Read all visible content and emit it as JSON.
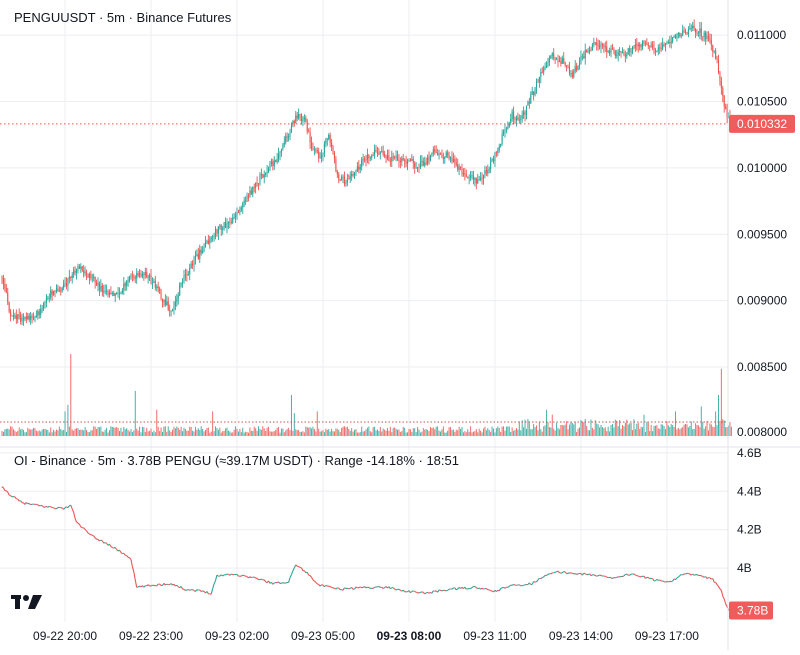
{
  "header": {
    "title": "PENGUUSDT · 5m · Binance Futures"
  },
  "oi_header": {
    "title": "OI - Binance · 5m · 3.78B PENGU (≈39.17M USDT) · Range -14.18% · 18:51"
  },
  "colors": {
    "up": "#26a69a",
    "down": "#ef5350",
    "grid": "#eceef2",
    "axis_text": "#131722",
    "badge": "#f05b5b"
  },
  "logo": {
    "icon": "tradingview-logo-icon"
  },
  "chart_data": [
    {
      "type": "candlestick",
      "name": "PENGUUSDT",
      "ylim": [
        0.00795,
        0.01125
      ],
      "y_ticks": [
        0.0085,
        0.009,
        0.0095,
        0.01,
        0.0105,
        0.011
      ],
      "y_tick_labels": [
        "0.008500",
        "0.009000",
        "0.009500",
        "0.010000",
        "0.010500",
        "0.011000"
      ],
      "last_price": 0.010332,
      "last_price_label": "0.010332",
      "price_path": [
        [
          0,
          0.00918
        ],
        [
          6,
          0.0089
        ],
        [
          14,
          0.00885
        ],
        [
          24,
          0.00888
        ],
        [
          34,
          0.00905
        ],
        [
          44,
          0.00912
        ],
        [
          54,
          0.00925
        ],
        [
          64,
          0.00915
        ],
        [
          70,
          0.00908
        ],
        [
          80,
          0.00903
        ],
        [
          90,
          0.00918
        ],
        [
          100,
          0.00922
        ],
        [
          110,
          0.00905
        ],
        [
          118,
          0.00892
        ],
        [
          124,
          0.0091
        ],
        [
          132,
          0.00925
        ],
        [
          140,
          0.0094
        ],
        [
          152,
          0.00955
        ],
        [
          160,
          0.0096
        ],
        [
          170,
          0.00975
        ],
        [
          180,
          0.00992
        ],
        [
          190,
          0.01005
        ],
        [
          198,
          0.01022
        ],
        [
          206,
          0.0104
        ],
        [
          212,
          0.01035
        ],
        [
          216,
          0.01015
        ],
        [
          222,
          0.01008
        ],
        [
          228,
          0.01025
        ],
        [
          234,
          0.00995
        ],
        [
          240,
          0.0099
        ],
        [
          250,
          0.01003
        ],
        [
          260,
          0.01012
        ],
        [
          270,
          0.01008
        ],
        [
          282,
          0.01005
        ],
        [
          292,
          0.01002
        ],
        [
          302,
          0.01012
        ],
        [
          312,
          0.01008
        ],
        [
          322,
          0.00995
        ],
        [
          332,
          0.0099
        ],
        [
          340,
          0.01
        ],
        [
          350,
          0.01025
        ],
        [
          356,
          0.0104
        ],
        [
          362,
          0.01035
        ],
        [
          370,
          0.01055
        ],
        [
          376,
          0.0107
        ],
        [
          384,
          0.01085
        ],
        [
          392,
          0.0108
        ],
        [
          398,
          0.0107
        ],
        [
          406,
          0.01085
        ],
        [
          414,
          0.01093
        ],
        [
          422,
          0.0109
        ],
        [
          432,
          0.01085
        ],
        [
          440,
          0.0109
        ],
        [
          448,
          0.01093
        ],
        [
          456,
          0.01088
        ],
        [
          464,
          0.01095
        ],
        [
          472,
          0.011
        ],
        [
          480,
          0.01105
        ],
        [
          486,
          0.01103
        ],
        [
          492,
          0.01098
        ],
        [
          496,
          0.0109
        ],
        [
          500,
          0.01075
        ],
        [
          504,
          0.01045
        ],
        [
          508,
          0.01033
        ]
      ],
      "volume_spikes": [
        {
          "candle": 48,
          "level": 1.0
        },
        {
          "candle": 46,
          "level": 0.38
        },
        {
          "candle": 44,
          "level": 0.3
        },
        {
          "candle": 93,
          "level": 0.55
        },
        {
          "candle": 108,
          "level": 0.32
        },
        {
          "candle": 147,
          "level": 0.3
        },
        {
          "candle": 202,
          "level": 0.5
        },
        {
          "candle": 204,
          "level": 0.28
        },
        {
          "candle": 220,
          "level": 0.3
        },
        {
          "candle": 380,
          "level": 0.32
        },
        {
          "candle": 384,
          "level": 0.26
        },
        {
          "candle": 448,
          "level": 0.26
        },
        {
          "candle": 470,
          "level": 0.3
        },
        {
          "candle": 488,
          "level": 0.36
        },
        {
          "candle": 500,
          "level": 0.5
        },
        {
          "candle": 502,
          "level": 0.82
        },
        {
          "candle": 498,
          "level": 0.3
        }
      ]
    },
    {
      "type": "line",
      "name": "OI - Binance",
      "unit": "B",
      "ylim": [
        3.72,
        4.62
      ],
      "y_ticks": [
        4.0,
        4.2,
        4.4,
        4.6
      ],
      "y_tick_labels": [
        "4B",
        "4.2B",
        "4.4B",
        "4.6B"
      ],
      "last_value": 3.78,
      "last_value_label": "3.78B",
      "oi_path": [
        [
          0,
          4.42
        ],
        [
          6,
          4.38
        ],
        [
          14,
          4.34
        ],
        [
          30,
          4.32
        ],
        [
          44,
          4.31
        ],
        [
          48,
          4.33
        ],
        [
          52,
          4.24
        ],
        [
          62,
          4.17
        ],
        [
          75,
          4.12
        ],
        [
          84,
          4.08
        ],
        [
          90,
          4.05
        ],
        [
          94,
          3.9
        ],
        [
          104,
          3.91
        ],
        [
          118,
          3.92
        ],
        [
          128,
          3.89
        ],
        [
          140,
          3.88
        ],
        [
          146,
          3.87
        ],
        [
          150,
          3.96
        ],
        [
          160,
          3.97
        ],
        [
          176,
          3.95
        ],
        [
          190,
          3.92
        ],
        [
          200,
          3.93
        ],
        [
          205,
          4.02
        ],
        [
          212,
          3.98
        ],
        [
          222,
          3.91
        ],
        [
          236,
          3.89
        ],
        [
          252,
          3.9
        ],
        [
          270,
          3.9
        ],
        [
          282,
          3.88
        ],
        [
          296,
          3.87
        ],
        [
          312,
          3.89
        ],
        [
          330,
          3.9
        ],
        [
          344,
          3.88
        ],
        [
          356,
          3.91
        ],
        [
          370,
          3.92
        ],
        [
          378,
          3.96
        ],
        [
          388,
          3.98
        ],
        [
          404,
          3.97
        ],
        [
          418,
          3.96
        ],
        [
          426,
          3.95
        ],
        [
          440,
          3.97
        ],
        [
          454,
          3.94
        ],
        [
          466,
          3.93
        ],
        [
          476,
          3.97
        ],
        [
          488,
          3.96
        ],
        [
          496,
          3.94
        ],
        [
          502,
          3.88
        ],
        [
          506,
          3.8
        ],
        [
          508,
          3.78
        ]
      ]
    }
  ],
  "x_axis": {
    "ticks": [
      {
        "candle": 44,
        "label": "09-22 20:00",
        "bold": false
      },
      {
        "candle": 104,
        "label": "09-22 23:00",
        "bold": false
      },
      {
        "candle": 164,
        "label": "09-23 02:00",
        "bold": false
      },
      {
        "candle": 224,
        "label": "09-23 05:00",
        "bold": false
      },
      {
        "candle": 284,
        "label": "09-23 08:00",
        "bold": true
      },
      {
        "candle": 344,
        "label": "09-23 11:00",
        "bold": false
      },
      {
        "candle": 404,
        "label": "09-23 14:00",
        "bold": false
      },
      {
        "candle": 464,
        "label": "09-23 17:00",
        "bold": false
      }
    ]
  }
}
